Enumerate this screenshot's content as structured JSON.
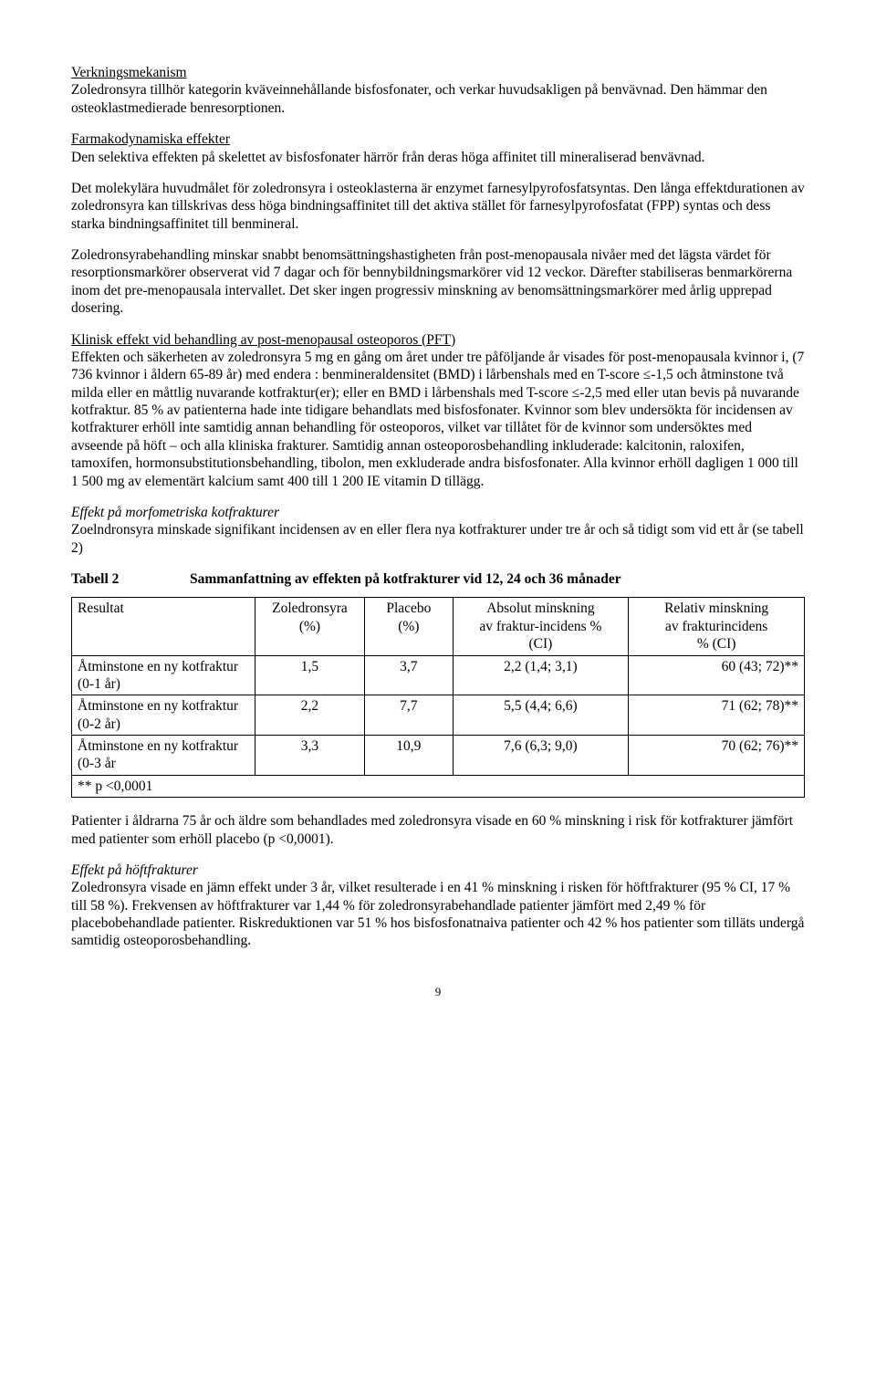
{
  "s1": {
    "heading": "Verkningsmekanism",
    "p1": "Zoledronsyra tillhör kategorin kväveinnehållande bisfosfonater, och verkar huvudsakligen på benvävnad. Den hämmar den osteoklastmedierade benresorptionen."
  },
  "s2": {
    "heading": "Farmakodynamiska effekter",
    "p1": "Den selektiva effekten på skelettet av bisfosfonater härrör från deras höga affinitet till mineraliserad benvävnad."
  },
  "s3": {
    "p1": "Det molekylära huvudmålet för zoledronsyra i osteoklasterna är enzymet farnesylpyrofosfatsyntas. Den långa effektdurationen av zoledronsyra kan tillskrivas dess höga bindningsaffinitet till det aktiva stället för farnesylpyrofosfatat (FPP) syntas och dess starka bindningsaffinitet till benmineral.",
    "p2": "Zoledronsyrabehandling minskar snabbt benomsättningshastigheten från post-menopausala nivåer med det lägsta värdet för resorptionsmarkörer observerat vid 7 dagar och för bennybildningsmarkörer vid 12 veckor. Därefter stabiliseras benmarkörerna inom det pre-menopausala intervallet. Det sker ingen progressiv minskning av benomsättningsmarkörer med årlig upprepad dosering."
  },
  "s4": {
    "heading": "Klinisk effekt vid behandling av post-menopausal osteoporos (PFT)",
    "p1": "Effekten och säkerheten av zoledronsyra 5 mg en gång om året under tre påföljande år visades för post-menopausala kvinnor i, (7 736 kvinnor i åldern 65-89 år) med endera : benmineraldensitet (BMD) i lårbenshals med en T-score ≤-1,5 och åtminstone två milda eller en måttlig nuvarande kotfraktur(er); eller en BMD i lårbenshals med T-score ≤-2,5 med eller utan bevis på nuvarande kotfraktur. 85 % av patienterna hade inte tidigare behandlats med bisfosfonater. Kvinnor som blev undersökta för incidensen av kotfrakturer erhöll inte samtidig annan behandling för osteoporos, vilket var tillåtet för de kvinnor som undersöktes med avseende på höft – och alla kliniska frakturer. Samtidig annan osteoporosbehandling inkluderade: kalcitonin, raloxifen, tamoxifen, hormonsubstitutionsbehandling, tibolon, men exkluderade andra bisfosfonater. Alla kvinnor erhöll dagligen 1 000 till 1 500 mg av elementärt kalcium samt 400 till 1 200 IE vitamin D tillägg."
  },
  "s5": {
    "heading": "Effekt på morfometriska kotfrakturer",
    "p1": "Zoelndronsyra minskade signifikant incidensen av en eller flera nya kotfrakturer under tre år och så tidigt som vid ett år (se tabell 2)"
  },
  "tabell": {
    "label": "Tabell 2",
    "title": "Sammanfattning av effekten på kotfrakturer vid 12, 24 och 36 månader",
    "columns": [
      "Resultat",
      "Zoledronsyra (%)",
      "Placebo (%)",
      "Absolut minskning av fraktur-incidens % (CI)",
      "Relativ minskning av frakturincidens % (CI)"
    ],
    "col_widths": [
      "25%",
      "15%",
      "12%",
      "24%",
      "24%"
    ],
    "rows": [
      [
        "Åtminstone en ny kotfraktur (0-1 år)",
        "1,5",
        "3,7",
        "2,2 (1,4; 3,1)",
        "60 (43; 72)**"
      ],
      [
        "Åtminstone en ny kotfraktur (0-2 år)",
        "2,2",
        "7,7",
        "5,5 (4,4; 6,6)",
        "71 (62; 78)**"
      ],
      [
        "Åtminstone en ny kotfraktur (0-3 år",
        "3,3",
        "10,9",
        "7,6 (6,3; 9,0)",
        "70 (62; 76)**"
      ]
    ],
    "footnote": "** p <0,0001",
    "header_align": [
      "left",
      "center",
      "center",
      "center",
      "center"
    ],
    "body_align": [
      "left",
      "center",
      "center",
      "center",
      "right"
    ]
  },
  "s6": {
    "p1": "Patienter i åldrarna 75 år och äldre som behandlades med zoledronsyra visade en 60 % minskning i risk för kotfrakturer jämfört med patienter som erhöll placebo (p <0,0001)."
  },
  "s7": {
    "heading": "Effekt på höftfrakturer",
    "p1": "Zoledronsyra visade en jämn effekt under 3 år, vilket resulterade i en 41 % minskning i risken för höftfrakturer (95 % CI, 17 % till 58 %). Frekvensen av höftfrakturer var 1,44 % för zoledronsyrabehandlade patienter jämfört med 2,49 % för placebobehandlade patienter. Riskreduktionen var 51 % hos bisfosfonatnaiva patienter och 42 % hos patienter som tilläts undergå samtidig osteoporosbehandling."
  },
  "page_number": "9"
}
